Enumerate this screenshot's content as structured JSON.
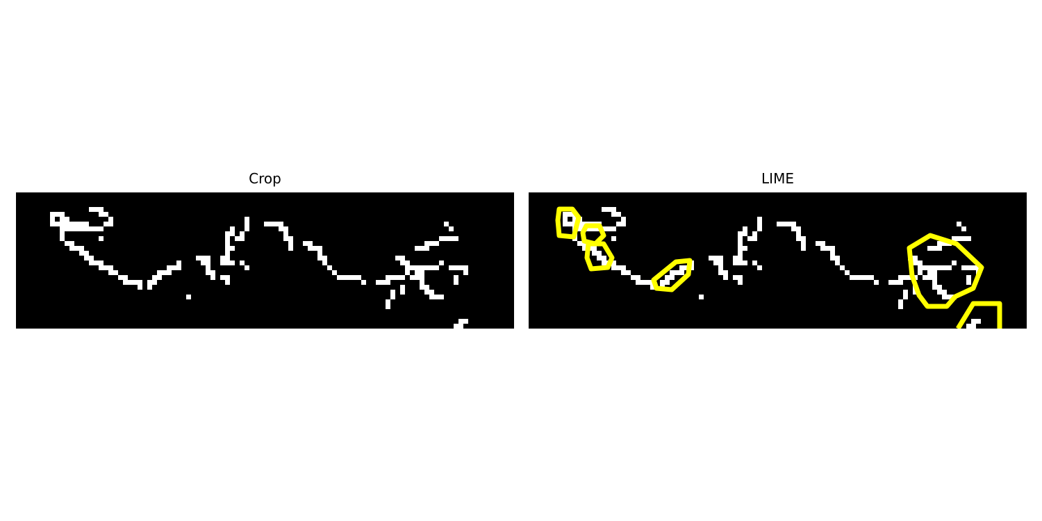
{
  "panels": [
    {
      "title": "Crop"
    },
    {
      "title": "LIME"
    }
  ],
  "colors": {
    "background": "#000000",
    "edge_pixels": "#ffffff",
    "lime_boundary": "#ffff00"
  }
}
